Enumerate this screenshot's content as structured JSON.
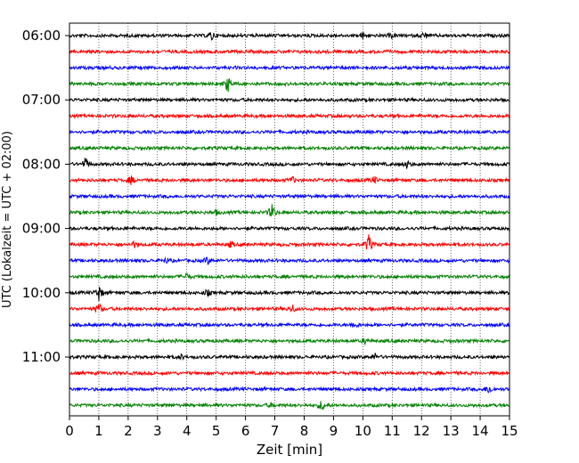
{
  "chart_data": {
    "type": "line",
    "title": "",
    "xlabel": "Zeit  [min]",
    "ylabel": "UTC (Lokalzeit = UTC + 02:00)",
    "xlim": [
      0,
      15
    ],
    "x_ticks": [
      0,
      1,
      2,
      3,
      4,
      5,
      6,
      7,
      8,
      9,
      10,
      11,
      12,
      13,
      14,
      15
    ],
    "x_tick_labels": [
      "0",
      "1",
      "2",
      "3",
      "4",
      "5",
      "6",
      "7",
      "8",
      "9",
      "10",
      "11",
      "12",
      "13",
      "14",
      "15"
    ],
    "y_tick_labels": [
      "06:00",
      "07:00",
      "08:00",
      "09:00",
      "10:00",
      "11:00"
    ],
    "grid": "vertical dotted at each minute",
    "trace_minutes": 15,
    "trace_colors": [
      "#000000",
      "#ff0000",
      "#0000ff",
      "#008000"
    ],
    "traces": [
      {
        "start": "06:00",
        "events": [
          {
            "t": 4.85,
            "amp": 0.4
          },
          {
            "t": 12.1,
            "amp": 0.3
          },
          {
            "t": 10.0,
            "amp": 0.25
          },
          {
            "t": 11.0,
            "amp": 0.2
          }
        ]
      },
      {
        "start": "06:15",
        "events": []
      },
      {
        "start": "06:30",
        "events": []
      },
      {
        "start": "06:45",
        "events": [
          {
            "t": 5.4,
            "amp": 0.7
          }
        ]
      },
      {
        "start": "07:00",
        "events": []
      },
      {
        "start": "07:15",
        "events": []
      },
      {
        "start": "07:30",
        "events": []
      },
      {
        "start": "07:45",
        "events": []
      },
      {
        "start": "08:00",
        "events": [
          {
            "t": 0.55,
            "amp": 0.55
          },
          {
            "t": 11.5,
            "amp": 0.35
          }
        ]
      },
      {
        "start": "08:15",
        "events": [
          {
            "t": 2.1,
            "amp": 0.35
          },
          {
            "t": 7.6,
            "amp": 0.25
          },
          {
            "t": 10.4,
            "amp": 0.25
          }
        ]
      },
      {
        "start": "08:30",
        "events": []
      },
      {
        "start": "08:45",
        "events": [
          {
            "t": 6.9,
            "amp": 0.65
          },
          {
            "t": 5.0,
            "amp": 0.2
          }
        ]
      },
      {
        "start": "09:00",
        "events": []
      },
      {
        "start": "09:15",
        "events": [
          {
            "t": 10.2,
            "amp": 0.85
          },
          {
            "t": 2.2,
            "amp": 0.25
          },
          {
            "t": 5.5,
            "amp": 0.2
          }
        ]
      },
      {
        "start": "09:30",
        "events": [
          {
            "t": 4.7,
            "amp": 0.3
          },
          {
            "t": 3.3,
            "amp": 0.2
          }
        ]
      },
      {
        "start": "09:45",
        "events": [
          {
            "t": 4.0,
            "amp": 0.25
          }
        ]
      },
      {
        "start": "10:00",
        "events": [
          {
            "t": 1.0,
            "amp": 0.7
          },
          {
            "t": 4.7,
            "amp": 0.25
          }
        ]
      },
      {
        "start": "10:15",
        "events": [
          {
            "t": 1.0,
            "amp": 0.5
          },
          {
            "t": 7.6,
            "amp": 0.3
          }
        ]
      },
      {
        "start": "10:30",
        "events": [
          {
            "t": 9.7,
            "amp": 0.3
          }
        ]
      },
      {
        "start": "10:45",
        "events": [
          {
            "t": 10.1,
            "amp": 0.25
          }
        ]
      },
      {
        "start": "11:00",
        "events": [
          {
            "t": 10.4,
            "amp": 0.3
          },
          {
            "t": 3.8,
            "amp": 0.2
          }
        ]
      },
      {
        "start": "11:15",
        "events": []
      },
      {
        "start": "11:30",
        "events": [
          {
            "t": 14.3,
            "amp": 0.4
          }
        ]
      },
      {
        "start": "11:45",
        "events": [
          {
            "t": 8.6,
            "amp": 0.45
          },
          {
            "t": 6.9,
            "amp": 0.2
          }
        ]
      }
    ]
  }
}
